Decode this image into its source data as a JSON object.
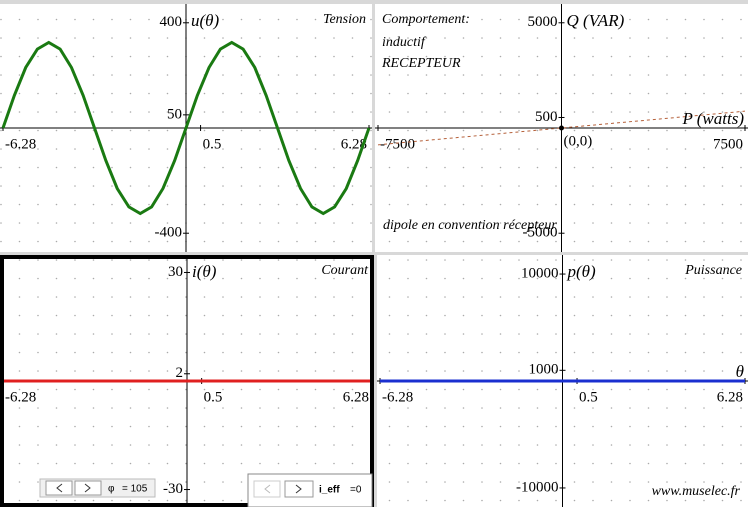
{
  "chart_data": [
    {
      "type": "line",
      "title": "Tension",
      "ylabel": "u(θ)",
      "xlim": [
        -6.28,
        6.28
      ],
      "ylim": [
        -460,
        460
      ],
      "xticks": [
        -6.28,
        0.5,
        6.28
      ],
      "yticks": [
        400,
        50,
        -400
      ],
      "series": [
        {
          "name": "u",
          "color": "#1a7a12",
          "x": [
            -6.28,
            -5.89,
            -5.5,
            -5.1,
            -4.71,
            -4.32,
            -3.93,
            -3.53,
            -3.14,
            -2.75,
            -2.36,
            -1.96,
            -1.57,
            -1.18,
            -0.79,
            -0.39,
            0,
            0.39,
            0.79,
            1.18,
            1.57,
            1.96,
            2.36,
            2.75,
            3.14,
            3.53,
            3.93,
            4.32,
            4.71,
            5.1,
            5.5,
            5.89,
            6.28
          ],
          "values": [
            0,
            124,
            230,
            300,
            325,
            300,
            230,
            124,
            0,
            -124,
            -230,
            -300,
            -325,
            -300,
            -230,
            -124,
            0,
            124,
            230,
            300,
            325,
            300,
            230,
            124,
            0,
            -124,
            -230,
            -300,
            -325,
            -300,
            -230,
            -124,
            0
          ]
        }
      ]
    },
    {
      "type": "line",
      "ylabel": "Q (VAR)",
      "xlabel": "P (watts)",
      "xlim": [
        -7500,
        7500
      ],
      "ylim": [
        -5750,
        5750
      ],
      "xticks": [
        -7500,
        7500
      ],
      "yticks": [
        5000,
        500,
        -5000
      ],
      "annotations": [
        "Comportement:",
        "inductif",
        "RECEPTEUR",
        "dipole en convention récepteur"
      ],
      "point": {
        "x": 0,
        "y": 0,
        "label": "(0,0)"
      },
      "series": [
        {
          "name": "Q",
          "color": "#b5603a",
          "dashed": true,
          "x": [
            -7500,
            7500
          ],
          "values": [
            -800,
            800
          ]
        }
      ]
    },
    {
      "type": "line",
      "title": "Courant",
      "ylabel": "i(θ)",
      "xlim": [
        -6.28,
        6.28
      ],
      "ylim": [
        -34,
        34
      ],
      "xticks": [
        -6.28,
        0.5,
        6.28
      ],
      "yticks": [
        30,
        2,
        -30
      ],
      "series": [
        {
          "name": "i",
          "color": "#e02020",
          "x": [
            -6.28,
            6.28
          ],
          "values": [
            0,
            0
          ]
        }
      ]
    },
    {
      "type": "line",
      "title": "Puissance",
      "ylabel": "p(θ)",
      "xlabel": "θ",
      "xlim": [
        -6.28,
        6.28
      ],
      "ylim": [
        -11500,
        11500
      ],
      "xticks": [
        -6.28,
        0.5,
        6.28
      ],
      "yticks": [
        10000,
        1000,
        -10000
      ],
      "series": [
        {
          "name": "p",
          "color": "#1a2fd0",
          "x": [
            -6.28,
            6.28
          ],
          "values": [
            0,
            0
          ]
        }
      ]
    }
  ],
  "sliders": [
    {
      "label": "φ",
      "value_text": "= 105"
    },
    {
      "label": "i_eff",
      "value_text": "=0"
    }
  ],
  "footer": "www.muselec.fr"
}
